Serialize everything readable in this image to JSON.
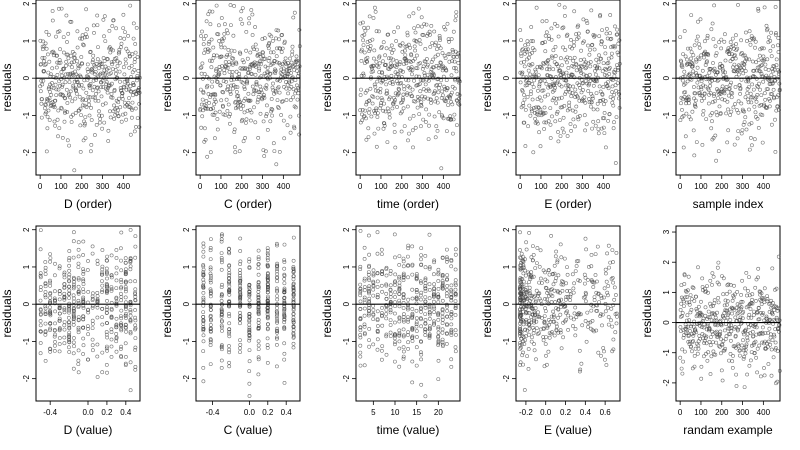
{
  "chart_data": [
    {
      "type": "scatter",
      "xlabel": "D (order)",
      "ylabel": "residuals",
      "xlim": [
        -20,
        480
      ],
      "ylim": [
        -2.6,
        2.1
      ],
      "x_ticks": [
        "0",
        "100",
        "200",
        "300",
        "400"
      ],
      "y_ticks": [
        "-2",
        "-1",
        "0",
        "1",
        "2"
      ],
      "zero_line": true,
      "x_kind": "order",
      "n": 480,
      "seed": 11
    },
    {
      "type": "scatter",
      "xlabel": "C (order)",
      "ylabel": "residuals",
      "xlim": [
        -20,
        480
      ],
      "ylim": [
        -2.6,
        2.1
      ],
      "x_ticks": [
        "0",
        "100",
        "200",
        "300",
        "400"
      ],
      "y_ticks": [
        "-2",
        "-1",
        "0",
        "1",
        "2"
      ],
      "zero_line": true,
      "x_kind": "order",
      "n": 480,
      "seed": 23
    },
    {
      "type": "scatter",
      "xlabel": "time (order)",
      "ylabel": "residuals",
      "xlim": [
        -20,
        480
      ],
      "ylim": [
        -2.6,
        2.1
      ],
      "x_ticks": [
        "0",
        "100",
        "200",
        "300",
        "400"
      ],
      "y_ticks": [
        "-2",
        "-1",
        "0",
        "1",
        "2"
      ],
      "zero_line": true,
      "x_kind": "order",
      "n": 480,
      "seed": 37
    },
    {
      "type": "scatter",
      "xlabel": "E (order)",
      "ylabel": "residuals",
      "xlim": [
        -20,
        480
      ],
      "ylim": [
        -2.6,
        2.1
      ],
      "x_ticks": [
        "0",
        "100",
        "200",
        "300",
        "400"
      ],
      "y_ticks": [
        "-2",
        "-1",
        "0",
        "1",
        "2"
      ],
      "zero_line": true,
      "x_kind": "order",
      "n": 480,
      "seed": 41
    },
    {
      "type": "scatter",
      "xlabel": "sample index",
      "ylabel": "residuals",
      "xlim": [
        -20,
        480
      ],
      "ylim": [
        -2.6,
        2.1
      ],
      "x_ticks": [
        "0",
        "100",
        "200",
        "300",
        "400"
      ],
      "y_ticks": [
        "-2",
        "-1",
        "0",
        "1",
        "2"
      ],
      "zero_line": true,
      "x_kind": "order",
      "n": 480,
      "seed": 53
    },
    {
      "type": "scatter",
      "xlabel": "D (value)",
      "ylabel": "residuals",
      "xlim": [
        -0.55,
        0.55
      ],
      "ylim": [
        -2.6,
        2.1
      ],
      "x_ticks": [
        "-0.4",
        "0.0",
        "0.2",
        "0.4"
      ],
      "y_ticks": [
        "-2",
        "-1",
        "0",
        "1",
        "2"
      ],
      "zero_line": true,
      "x_kind": "value",
      "x_levels": [
        -0.5,
        -0.45,
        -0.4,
        -0.35,
        -0.3,
        -0.25,
        -0.2,
        -0.15,
        -0.1,
        -0.05,
        0,
        0.05,
        0.1,
        0.15,
        0.2,
        0.25,
        0.3,
        0.35,
        0.4,
        0.45,
        0.5
      ],
      "n": 480,
      "seed": 61
    },
    {
      "type": "scatter",
      "xlabel": "C (value)",
      "ylabel": "residuals",
      "xlim": [
        -0.58,
        0.55
      ],
      "ylim": [
        -2.6,
        2.1
      ],
      "x_ticks": [
        "-0.4",
        "0.0",
        "0.2",
        "0.4"
      ],
      "y_ticks": [
        "-2",
        "-1",
        "0",
        "1",
        "2"
      ],
      "zero_line": true,
      "x_kind": "value",
      "x_levels": [
        -0.5,
        -0.42,
        -0.3,
        -0.22,
        -0.1,
        0,
        0.1,
        0.2,
        0.3,
        0.38,
        0.48
      ],
      "n": 480,
      "seed": 71
    },
    {
      "type": "scatter",
      "xlabel": "time (value)",
      "ylabel": "residuals",
      "xlim": [
        1,
        25
      ],
      "ylim": [
        -2.6,
        2.1
      ],
      "x_ticks": [
        "5",
        "10",
        "15",
        "20"
      ],
      "y_ticks": [
        "-2",
        "-1",
        "0",
        "1",
        "2"
      ],
      "zero_line": true,
      "x_kind": "value",
      "x_levels": [
        2,
        3,
        4,
        5,
        6,
        7,
        8,
        9,
        10,
        11,
        12,
        13,
        14,
        15,
        16,
        17,
        18,
        19,
        20,
        21,
        22,
        23,
        24
      ],
      "n": 480,
      "seed": 83
    },
    {
      "type": "scatter",
      "xlabel": "E (value)",
      "ylabel": "residuals",
      "xlim": [
        -0.3,
        0.75
      ],
      "ylim": [
        -2.6,
        2.1
      ],
      "x_ticks": [
        "-0.2",
        "0.0",
        "0.2",
        "0.4",
        "0.6"
      ],
      "y_ticks": [
        "-2",
        "-1",
        "0",
        "1",
        "2"
      ],
      "zero_line": true,
      "x_kind": "value_skew",
      "n": 480,
      "seed": 97
    },
    {
      "type": "scatter",
      "xlabel": "randam example",
      "ylabel": "residuals",
      "xlim": [
        -20,
        480
      ],
      "ylim": [
        -2.6,
        3.2
      ],
      "x_ticks": [
        "0",
        "100",
        "200",
        "300",
        "400"
      ],
      "y_ticks": [
        "-2",
        "-1",
        "0",
        "1",
        "2",
        "3"
      ],
      "zero_line": true,
      "x_kind": "order",
      "n": 480,
      "seed": 101
    }
  ]
}
